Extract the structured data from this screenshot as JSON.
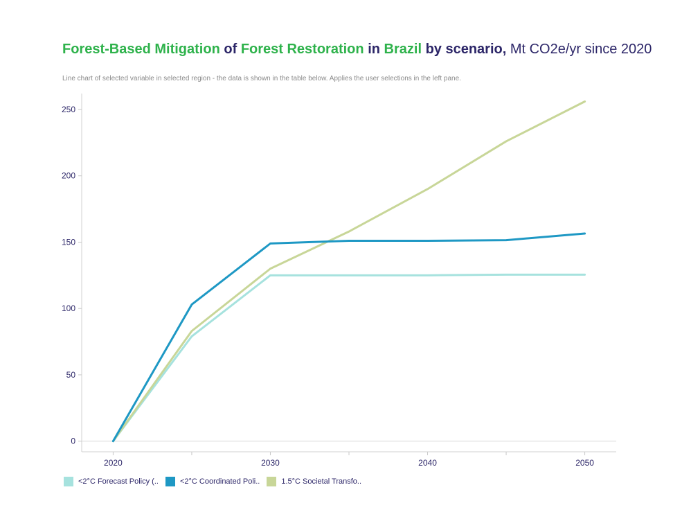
{
  "title": {
    "variable": "Forest-Based Mitigation",
    "of": "of",
    "category": "Forest Restoration",
    "in": "in",
    "region": "Brazil",
    "by": "by scenario,",
    "unit": "Mt CO2e/yr since 2020"
  },
  "subtitle": "Line chart of selected variable in selected region - the data is shown in the table below. Applies the user selections in the left pane.",
  "chart_data": {
    "type": "line",
    "x": [
      2020,
      2025,
      2030,
      2035,
      2040,
      2045,
      2050
    ],
    "xlim": [
      2018,
      2052
    ],
    "ylim": [
      -8,
      262
    ],
    "xticks": [
      2020,
      2030,
      2040,
      2050
    ],
    "yticks": [
      0,
      50,
      100,
      150,
      200,
      250
    ],
    "grid": false,
    "legend_position": "bottom-left",
    "series": [
      {
        "name": "<2°C Forecast Policy (..",
        "color": "#a6e2de",
        "values": [
          0,
          79,
          125,
          125,
          125,
          125.5,
          125.5
        ]
      },
      {
        "name": "1.5°C Societal Transfo..",
        "color": "#c8d698",
        "values": [
          0,
          83,
          130,
          158,
          190,
          226,
          256
        ]
      },
      {
        "name": "<2°C Coordinated Poli..",
        "color": "#1e98c4",
        "values": [
          0,
          103,
          149,
          151,
          151,
          151.5,
          156.5
        ]
      }
    ],
    "legend_order": [
      0,
      2,
      1
    ]
  }
}
